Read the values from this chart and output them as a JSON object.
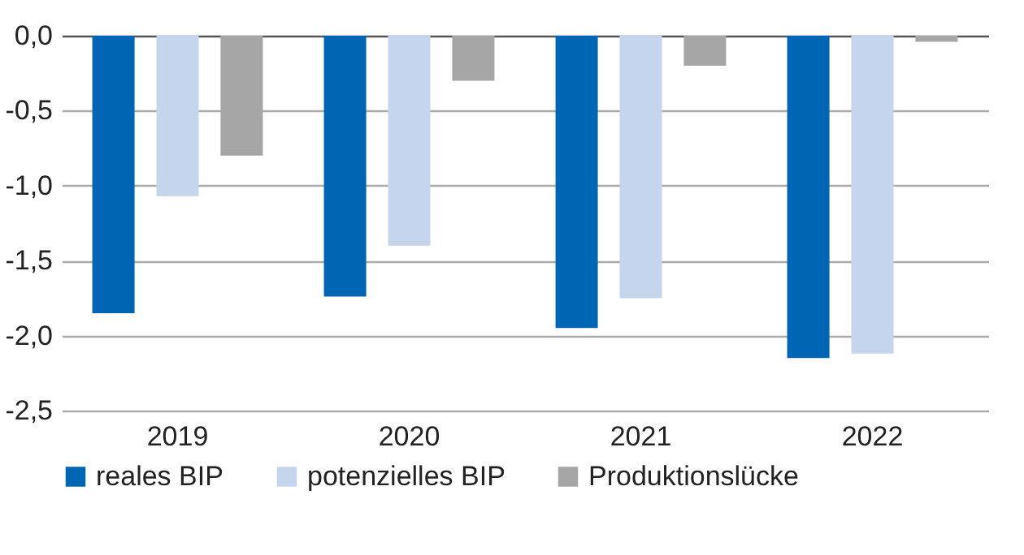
{
  "chart_data": {
    "type": "bar",
    "categories": [
      "2019",
      "2020",
      "2021",
      "2022"
    ],
    "series": [
      {
        "name": "reales BIP",
        "color": "#0066b3",
        "values": [
          -1.85,
          -1.74,
          -1.95,
          -2.15
        ]
      },
      {
        "name": "potenzielles BIP",
        "color": "#c6d5ee",
        "values": [
          -1.07,
          -1.4,
          -1.75,
          -2.12
        ]
      },
      {
        "name": "Produktionslücke",
        "color": "#a6a6a6",
        "values": [
          -0.8,
          -0.3,
          -0.2,
          -0.04
        ]
      }
    ],
    "ylim": [
      -2.5,
      0
    ],
    "yticks": [
      {
        "value": 0,
        "label": "0,0"
      },
      {
        "value": -0.5,
        "label": "-0,5"
      },
      {
        "value": -1,
        "label": "-1,0"
      },
      {
        "value": -1.5,
        "label": "-1,5"
      },
      {
        "value": -2,
        "label": "-2,0"
      },
      {
        "value": -2.5,
        "label": "-2,5"
      }
    ],
    "grid": "y",
    "legend": "bottom left"
  }
}
